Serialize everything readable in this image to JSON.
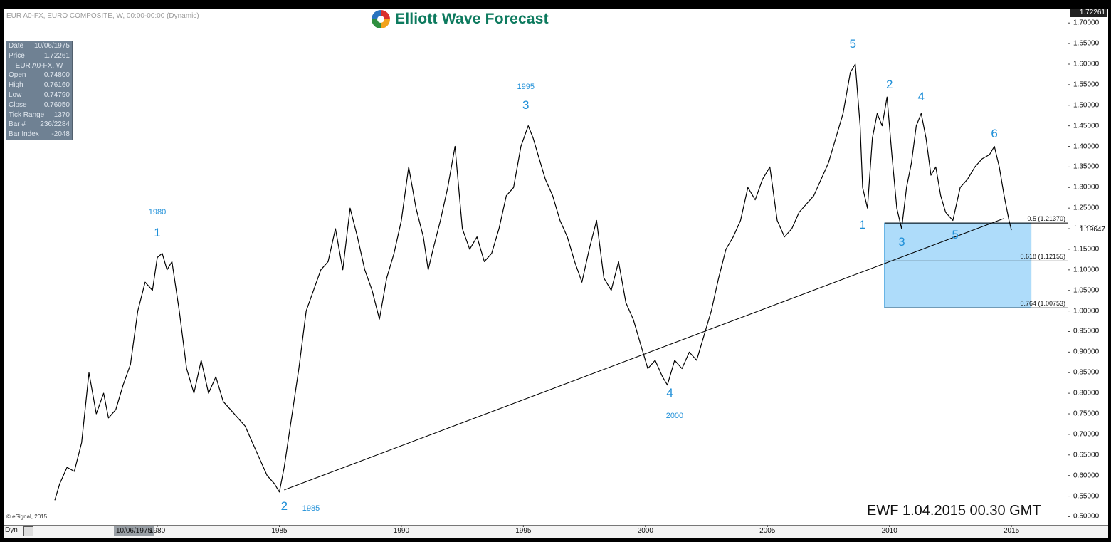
{
  "header": {
    "symbol_line": "EUR A0-FX, EURO COMPOSITE, W, 00:00-00:00 (Dynamic)",
    "logo_text": "Elliott Wave Forecast"
  },
  "info_panel": {
    "date_label": "Date",
    "date_value": "10/06/1975",
    "price_label": "Price",
    "price_value": "1.72261",
    "title": "EUR A0-FX, W",
    "open_label": "Open",
    "open_value": "0.74800",
    "high_label": "High",
    "high_value": "0.76160",
    "low_label": "Low",
    "low_value": "0.74790",
    "close_label": "Close",
    "close_value": "0.76050",
    "tick_label": "Tick Range",
    "tick_value": "1370",
    "bar_label": "Bar #",
    "bar_value": "236/2284",
    "index_label": "Bar Index",
    "index_value": "-2048"
  },
  "footer": {
    "stamp": "EWF  1.04.2015  00.30 GMT",
    "esignal": "© eSignal, 2015",
    "dyn_label": "Dyn",
    "x_cursor_label": "10/06/1975"
  },
  "colors": {
    "wave_label": "#1e8fd8",
    "zone_fill": "#aedcfa",
    "zone_border": "#1e8fd8",
    "price_line": "#000000"
  },
  "chart_data": {
    "type": "line",
    "title": "",
    "xlabel": "",
    "ylabel": "",
    "xlim": [
      1973.7,
      2017.3
    ],
    "ylim": [
      0.48,
      1.735
    ],
    "x_ticks": [
      "1980",
      "1985",
      "1990",
      "1995",
      "2000",
      "2005",
      "2010",
      "2015"
    ],
    "y_ticks": [
      "0.50000",
      "0.55000",
      "0.60000",
      "0.65000",
      "0.70000",
      "0.75000",
      "0.80000",
      "0.85000",
      "0.90000",
      "0.95000",
      "1.00000",
      "1.05000",
      "1.10000",
      "1.15000",
      "1.20000",
      "1.25000",
      "1.30000",
      "1.35000",
      "1.40000",
      "1.45000",
      "1.50000",
      "1.55000",
      "1.60000",
      "1.65000",
      "1.70000"
    ],
    "y_top_label": "1.72261",
    "last_price_label": "1.19647",
    "last_price": 1.19647,
    "grid": false,
    "series": [
      {
        "x": [
          1975.8,
          1976.0,
          1976.3,
          1976.6,
          1976.9,
          1977.2,
          1977.5,
          1977.8,
          1978.0,
          1978.3,
          1978.6,
          1978.9,
          1979.2,
          1979.5,
          1979.8,
          1980.0,
          1980.2,
          1980.4,
          1980.6,
          1980.9,
          1981.2,
          1981.5,
          1981.8,
          1982.1,
          1982.4,
          1982.7,
          1983.0,
          1983.3,
          1983.6,
          1983.9,
          1984.2,
          1984.5,
          1984.8,
          1985.0,
          1985.2,
          1985.5,
          1985.8,
          1986.1,
          1986.4,
          1986.7,
          1987.0,
          1987.3,
          1987.6,
          1987.9,
          1988.2,
          1988.5,
          1988.8,
          1989.1,
          1989.4,
          1989.7,
          1990.0,
          1990.3,
          1990.6,
          1990.9,
          1991.1,
          1991.3,
          1991.6,
          1991.9,
          1992.2,
          1992.5,
          1992.8,
          1993.1,
          1993.4,
          1993.7,
          1994.0,
          1994.3,
          1994.6,
          1994.9,
          1995.2,
          1995.4,
          1995.6,
          1995.9,
          1996.2,
          1996.5,
          1996.8,
          1997.1,
          1997.4,
          1997.7,
          1998.0,
          1998.3,
          1998.6,
          1998.9,
          1999.2,
          1999.5,
          1999.8,
          2000.1,
          2000.4,
          2000.7,
          2000.9,
          2001.2,
          2001.5,
          2001.8,
          2002.1,
          2002.4,
          2002.7,
          2003.0,
          2003.3,
          2003.6,
          2003.9,
          2004.2,
          2004.5,
          2004.8,
          2005.1,
          2005.4,
          2005.7,
          2006.0,
          2006.3,
          2006.6,
          2006.9,
          2007.2,
          2007.5,
          2007.8,
          2008.1,
          2008.4,
          2008.6,
          2008.8,
          2008.9,
          2009.1,
          2009.3,
          2009.5,
          2009.7,
          2009.9,
          2010.1,
          2010.3,
          2010.5,
          2010.7,
          2010.9,
          2011.1,
          2011.3,
          2011.5,
          2011.7,
          2011.9,
          2012.1,
          2012.3,
          2012.6,
          2012.9,
          2013.2,
          2013.5,
          2013.8,
          2014.1,
          2014.3,
          2014.5,
          2014.7,
          2014.9,
          2015.0
        ],
        "values": [
          0.54,
          0.58,
          0.62,
          0.61,
          0.68,
          0.85,
          0.75,
          0.8,
          0.74,
          0.76,
          0.82,
          0.87,
          1.0,
          1.07,
          1.05,
          1.13,
          1.14,
          1.1,
          1.12,
          1.0,
          0.86,
          0.8,
          0.88,
          0.8,
          0.84,
          0.78,
          0.76,
          0.74,
          0.72,
          0.68,
          0.64,
          0.6,
          0.58,
          0.56,
          0.62,
          0.74,
          0.86,
          1.0,
          1.05,
          1.1,
          1.12,
          1.2,
          1.1,
          1.25,
          1.18,
          1.1,
          1.05,
          0.98,
          1.08,
          1.14,
          1.22,
          1.35,
          1.25,
          1.18,
          1.1,
          1.15,
          1.22,
          1.3,
          1.4,
          1.2,
          1.15,
          1.18,
          1.12,
          1.14,
          1.2,
          1.28,
          1.3,
          1.4,
          1.45,
          1.42,
          1.38,
          1.32,
          1.28,
          1.22,
          1.18,
          1.12,
          1.07,
          1.15,
          1.22,
          1.08,
          1.05,
          1.12,
          1.02,
          0.98,
          0.92,
          0.86,
          0.88,
          0.84,
          0.82,
          0.88,
          0.86,
          0.9,
          0.88,
          0.94,
          1.0,
          1.08,
          1.15,
          1.18,
          1.22,
          1.3,
          1.27,
          1.32,
          1.35,
          1.22,
          1.18,
          1.2,
          1.24,
          1.26,
          1.28,
          1.32,
          1.36,
          1.42,
          1.48,
          1.58,
          1.6,
          1.45,
          1.3,
          1.25,
          1.42,
          1.48,
          1.45,
          1.52,
          1.38,
          1.25,
          1.2,
          1.3,
          1.36,
          1.45,
          1.48,
          1.42,
          1.33,
          1.35,
          1.28,
          1.24,
          1.22,
          1.3,
          1.32,
          1.35,
          1.37,
          1.38,
          1.4,
          1.35,
          1.28,
          1.22,
          1.19647
        ]
      }
    ],
    "fib_levels": [
      {
        "label": "0.5 (1.21370)",
        "value": 1.2137
      },
      {
        "label": "0.618 (1.12155)",
        "value": 1.12155
      },
      {
        "label": "0.764 (1.00753)",
        "value": 1.00753
      }
    ],
    "target_zone": {
      "x_start": 2009.8,
      "x_end": 2015.8,
      "y_top": 1.2137,
      "y_bottom": 1.00753
    },
    "trendline": {
      "x1": 1985.2,
      "y1": 0.565,
      "x2": 2014.7,
      "y2": 1.225
    },
    "wave_labels": [
      {
        "text": "1",
        "x": 1980.0,
        "y": 1.19,
        "size": "big"
      },
      {
        "text": "1980",
        "x": 1980.0,
        "y": 1.24,
        "size": "small"
      },
      {
        "text": "2",
        "x": 1985.2,
        "y": 0.525,
        "size": "big"
      },
      {
        "text": "1985",
        "x": 1986.3,
        "y": 0.52,
        "size": "small"
      },
      {
        "text": "3",
        "x": 1995.1,
        "y": 1.5,
        "size": "big"
      },
      {
        "text": "1995",
        "x": 1995.1,
        "y": 1.545,
        "size": "small"
      },
      {
        "text": "4",
        "x": 2001.0,
        "y": 0.8,
        "size": "big"
      },
      {
        "text": "2000",
        "x": 2001.2,
        "y": 0.745,
        "size": "small"
      },
      {
        "text": "5",
        "x": 2008.5,
        "y": 1.648,
        "size": "big"
      },
      {
        "text": "1",
        "x": 2008.9,
        "y": 1.208,
        "size": "big"
      },
      {
        "text": "2",
        "x": 2010.0,
        "y": 1.55,
        "size": "big"
      },
      {
        "text": "3",
        "x": 2010.5,
        "y": 1.168,
        "size": "big"
      },
      {
        "text": "4",
        "x": 2011.3,
        "y": 1.52,
        "size": "big"
      },
      {
        "text": "5",
        "x": 2012.7,
        "y": 1.185,
        "size": "big"
      },
      {
        "text": "6",
        "x": 2014.3,
        "y": 1.43,
        "size": "big"
      }
    ]
  }
}
